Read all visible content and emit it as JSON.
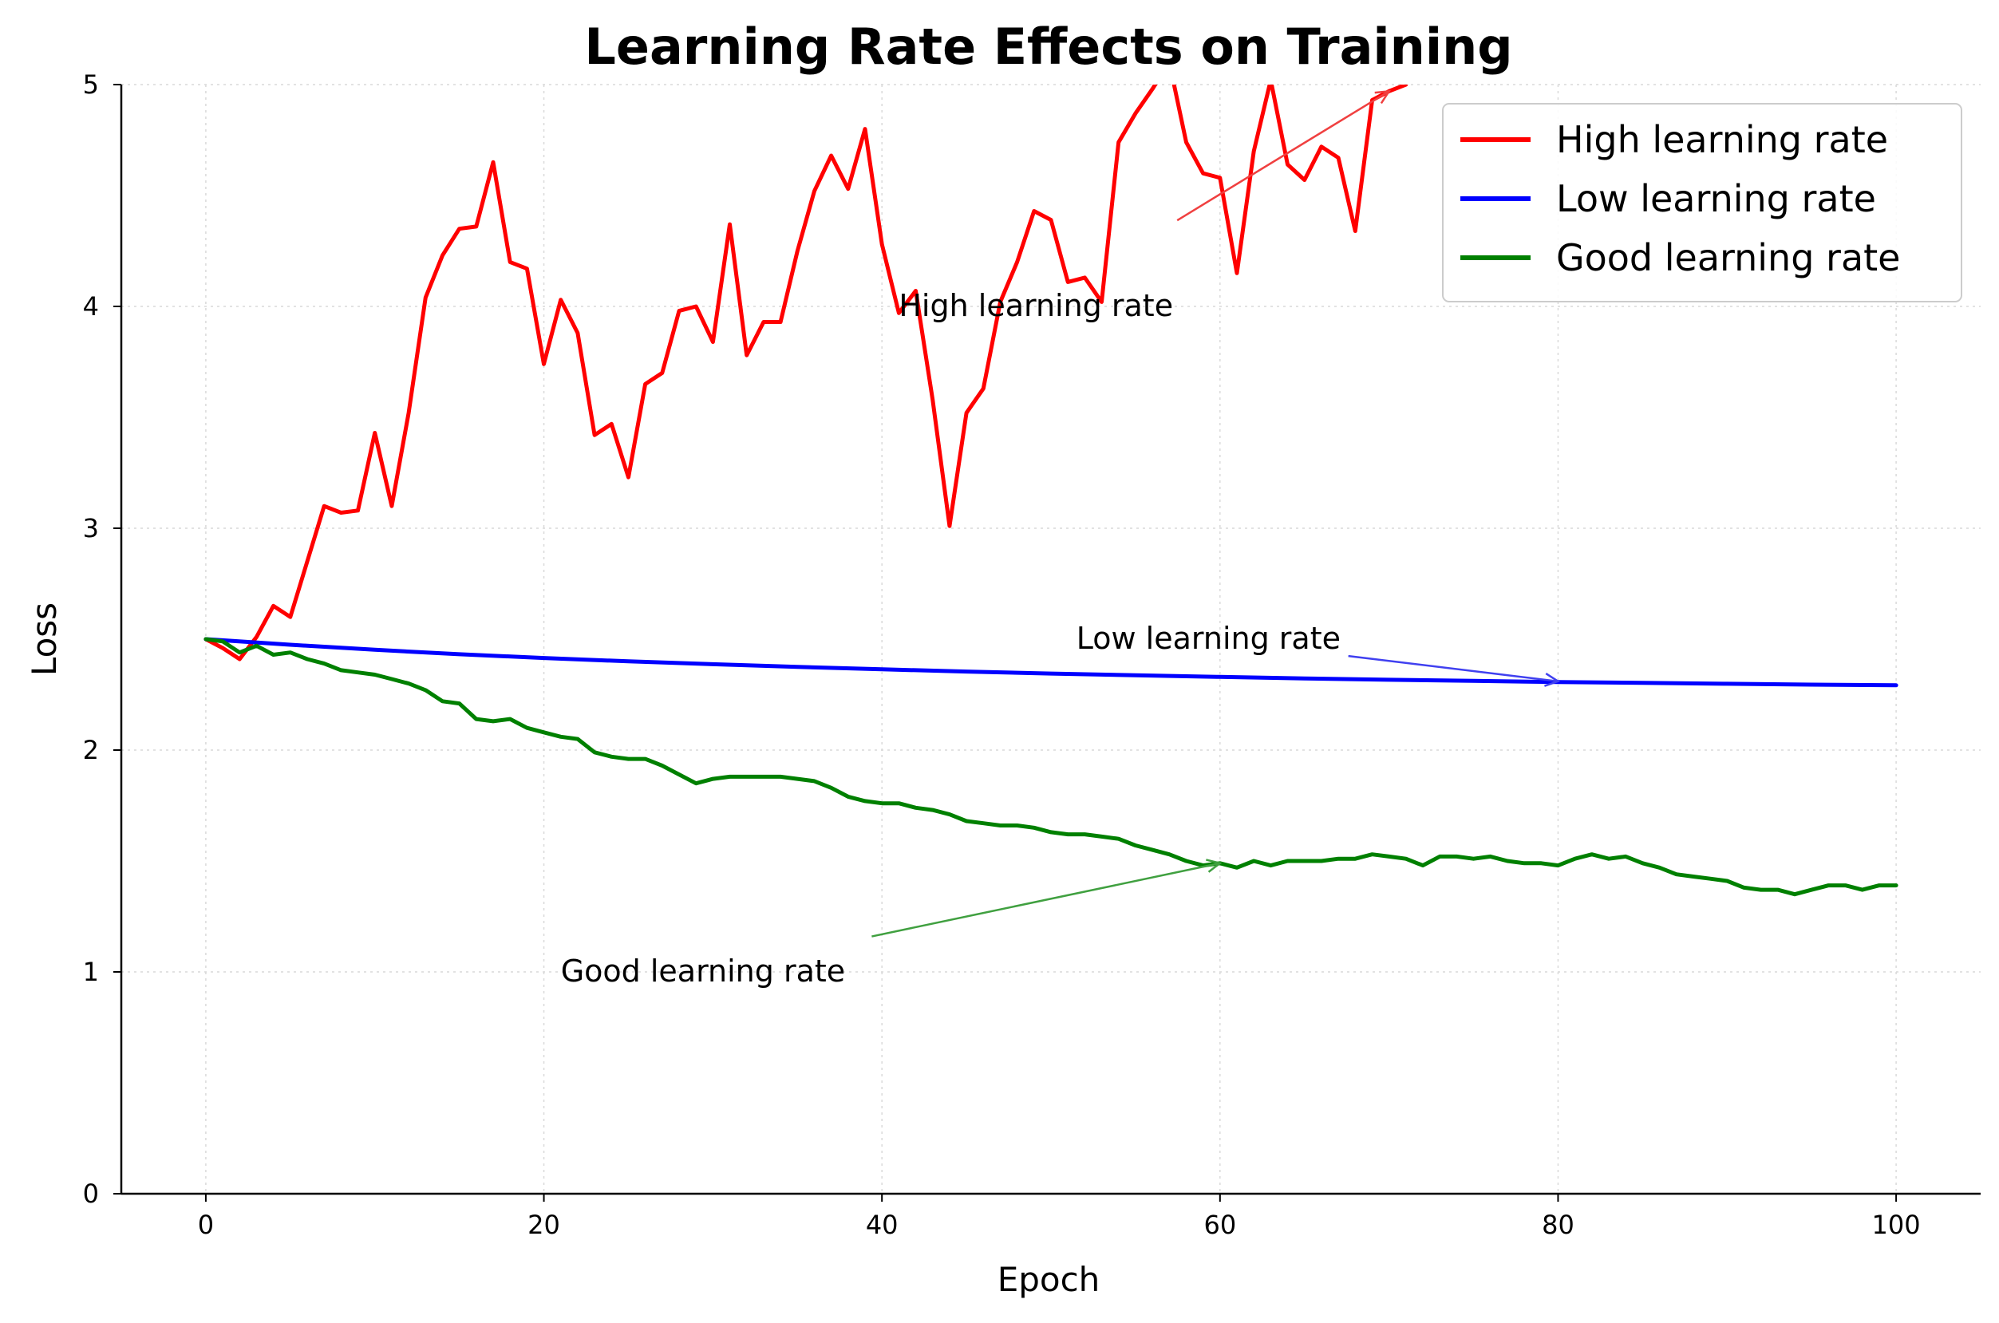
{
  "chart_data": {
    "type": "line",
    "title": "Learning Rate Effects on Training",
    "xlabel": "Epoch",
    "ylabel": "Loss",
    "xlim": [
      -5,
      105
    ],
    "ylim": [
      0,
      5
    ],
    "xticks": [
      0,
      20,
      40,
      60,
      80,
      100
    ],
    "yticks": [
      0,
      1,
      2,
      3,
      4,
      5
    ],
    "grid": true,
    "legend_position": "top-right",
    "series": [
      {
        "name": "High learning rate",
        "color": "#ff0000",
        "x": [
          0,
          1,
          2,
          3,
          4,
          5,
          6,
          7,
          8,
          9,
          10,
          11,
          12,
          13,
          14,
          15,
          16,
          17,
          18,
          19,
          20,
          21,
          22,
          23,
          24,
          25,
          26,
          27,
          28,
          29,
          30,
          31,
          32,
          33,
          34,
          35,
          36,
          37,
          38,
          39,
          40,
          41,
          42,
          43,
          44,
          45,
          46,
          47,
          48,
          49,
          50,
          51,
          52,
          53,
          54,
          55,
          56,
          57,
          58,
          59,
          60,
          61,
          62,
          63,
          64,
          65,
          66,
          67,
          68,
          69,
          70,
          71
        ],
        "y": [
          2.5,
          2.46,
          2.41,
          2.51,
          2.65,
          2.6,
          2.85,
          3.1,
          3.07,
          3.08,
          3.43,
          3.1,
          3.52,
          4.04,
          4.23,
          4.35,
          4.36,
          4.65,
          4.2,
          4.17,
          3.74,
          4.03,
          3.88,
          3.42,
          3.47,
          3.23,
          3.65,
          3.7,
          3.98,
          4.0,
          3.84,
          4.37,
          3.78,
          3.93,
          3.93,
          4.25,
          4.52,
          4.68,
          4.53,
          4.8,
          4.28,
          3.97,
          4.07,
          3.58,
          3.01,
          3.52,
          3.63,
          4.02,
          4.2,
          4.43,
          4.39,
          4.11,
          4.13,
          4.02,
          4.74,
          4.87,
          4.98,
          5.1,
          4.74,
          4.6,
          4.58,
          4.15,
          4.7,
          5.02,
          4.64,
          4.57,
          4.72,
          4.67,
          4.34,
          4.93,
          4.97,
          5.0
        ]
      },
      {
        "name": "Low learning rate",
        "color": "#0000ff",
        "x": [
          0,
          5,
          10,
          15,
          20,
          25,
          30,
          35,
          40,
          45,
          50,
          55,
          60,
          65,
          70,
          75,
          80,
          85,
          90,
          95,
          100
        ],
        "y": [
          2.5,
          2.475,
          2.452,
          2.432,
          2.415,
          2.4,
          2.387,
          2.375,
          2.364,
          2.354,
          2.345,
          2.337,
          2.33,
          2.323,
          2.317,
          2.312,
          2.307,
          2.303,
          2.299,
          2.295,
          2.292
        ]
      },
      {
        "name": "Good learning rate",
        "color": "#008000",
        "x": [
          0,
          1,
          2,
          3,
          4,
          5,
          6,
          7,
          8,
          9,
          10,
          11,
          12,
          13,
          14,
          15,
          16,
          17,
          18,
          19,
          20,
          21,
          22,
          23,
          24,
          25,
          26,
          27,
          28,
          29,
          30,
          31,
          32,
          33,
          34,
          35,
          36,
          37,
          38,
          39,
          40,
          41,
          42,
          43,
          44,
          45,
          46,
          47,
          48,
          49,
          50,
          51,
          52,
          53,
          54,
          55,
          56,
          57,
          58,
          59,
          60,
          61,
          62,
          63,
          64,
          65,
          66,
          67,
          68,
          69,
          70,
          71,
          72,
          73,
          74,
          75,
          76,
          77,
          78,
          79,
          80,
          81,
          82,
          83,
          84,
          85,
          86,
          87,
          88,
          89,
          90,
          91,
          92,
          93,
          94,
          95,
          96,
          97,
          98,
          99,
          100
        ],
        "y": [
          2.5,
          2.49,
          2.44,
          2.47,
          2.43,
          2.44,
          2.41,
          2.39,
          2.36,
          2.35,
          2.34,
          2.32,
          2.3,
          2.27,
          2.22,
          2.21,
          2.14,
          2.13,
          2.14,
          2.1,
          2.08,
          2.06,
          2.05,
          1.99,
          1.97,
          1.96,
          1.96,
          1.93,
          1.89,
          1.85,
          1.87,
          1.88,
          1.88,
          1.88,
          1.88,
          1.87,
          1.86,
          1.83,
          1.79,
          1.77,
          1.76,
          1.76,
          1.74,
          1.73,
          1.71,
          1.68,
          1.67,
          1.66,
          1.66,
          1.65,
          1.63,
          1.62,
          1.62,
          1.61,
          1.6,
          1.57,
          1.55,
          1.53,
          1.5,
          1.48,
          1.49,
          1.47,
          1.5,
          1.48,
          1.5,
          1.5,
          1.5,
          1.51,
          1.51,
          1.53,
          1.52,
          1.51,
          1.48,
          1.52,
          1.52,
          1.51,
          1.52,
          1.5,
          1.49,
          1.49,
          1.48,
          1.51,
          1.53,
          1.51,
          1.52,
          1.49,
          1.47,
          1.44,
          1.43,
          1.42,
          1.41,
          1.38,
          1.37,
          1.37,
          1.35,
          1.37,
          1.39,
          1.39,
          1.37,
          1.39,
          1.39
        ]
      }
    ],
    "annotations": [
      {
        "text": "High learning rate",
        "text_x": 41,
        "text_y": 4.0,
        "target_x": 70,
        "target_y": 4.97,
        "color": "#f04040"
      },
      {
        "text": "Low learning rate",
        "text_x": 51.5,
        "text_y": 2.5,
        "target_x": 80,
        "target_y": 2.31,
        "color": "#4040f0"
      },
      {
        "text": "Good learning rate",
        "text_x": 21,
        "text_y": 1.0,
        "target_x": 60,
        "target_y": 1.49,
        "color": "#40a040"
      }
    ]
  }
}
